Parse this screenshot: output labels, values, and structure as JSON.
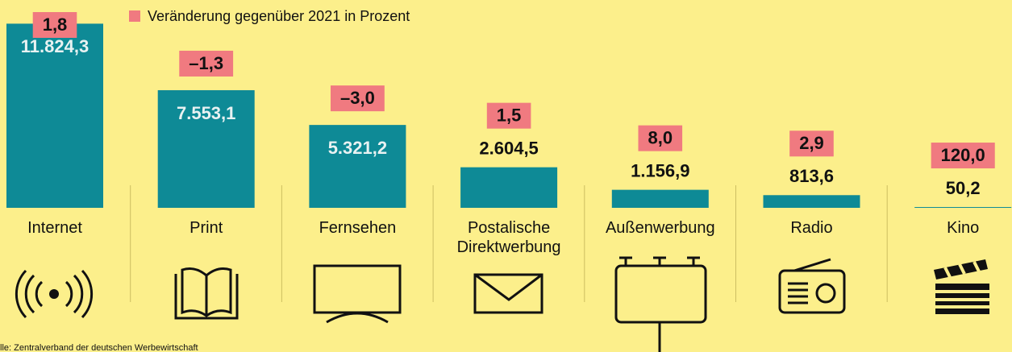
{
  "chart_data": {
    "type": "bar",
    "categories": [
      "Internet",
      "Print",
      "Fernsehen",
      "Postalische Direktwerbung",
      "Außenwerbung",
      "Radio",
      "Kino"
    ],
    "values": [
      11824.3,
      7553.1,
      5321.2,
      2604.5,
      1156.9,
      813.6,
      50.2
    ],
    "value_labels": [
      "11.824,3",
      "7.553,1",
      "5.321,2",
      "2.604,5",
      "1.156,9",
      "813,6",
      "50,2"
    ],
    "color": "#0e8a96",
    "ylim": [
      0,
      12000
    ],
    "change": {
      "name": "Veränderung gegenüber 2021 in Prozent",
      "color": "#f07a80",
      "values": [
        1.8,
        -1.3,
        -3.0,
        1.5,
        8.0,
        2.9,
        120.0
      ],
      "value_labels": [
        "1,8",
        "–1,3",
        "–3,0",
        "1,5",
        "8,0",
        "2,9",
        "120,0"
      ]
    },
    "source": "lle: Zentralverband der deutschen Werbewirtschaft"
  }
}
